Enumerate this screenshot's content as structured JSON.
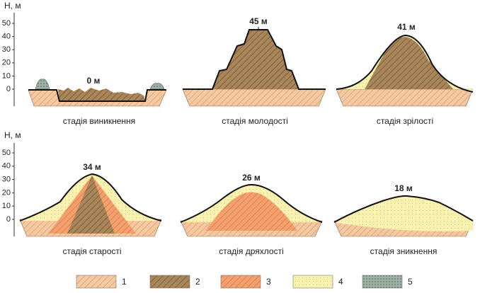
{
  "rows": [
    {
      "axis_label": "Н, м",
      "ticks": [
        0,
        10,
        20,
        30,
        40,
        50
      ]
    },
    {
      "axis_label": "Н, м",
      "ticks": [
        0,
        10,
        20,
        30,
        40,
        50
      ]
    }
  ],
  "panels": [
    {
      "height": "0 м",
      "label": "стадія виникнення"
    },
    {
      "height": "45 м",
      "label": "стадія молодості"
    },
    {
      "height": "41 м",
      "label": "стадія зрілості"
    },
    {
      "height": "34 м",
      "label": "стадія старості"
    },
    {
      "height": "26 м",
      "label": "стадія дряхлості"
    },
    {
      "height": "18 м",
      "label": "стадія зникнення"
    }
  ],
  "legend": [
    "1",
    "2",
    "3",
    "4",
    "5"
  ]
}
